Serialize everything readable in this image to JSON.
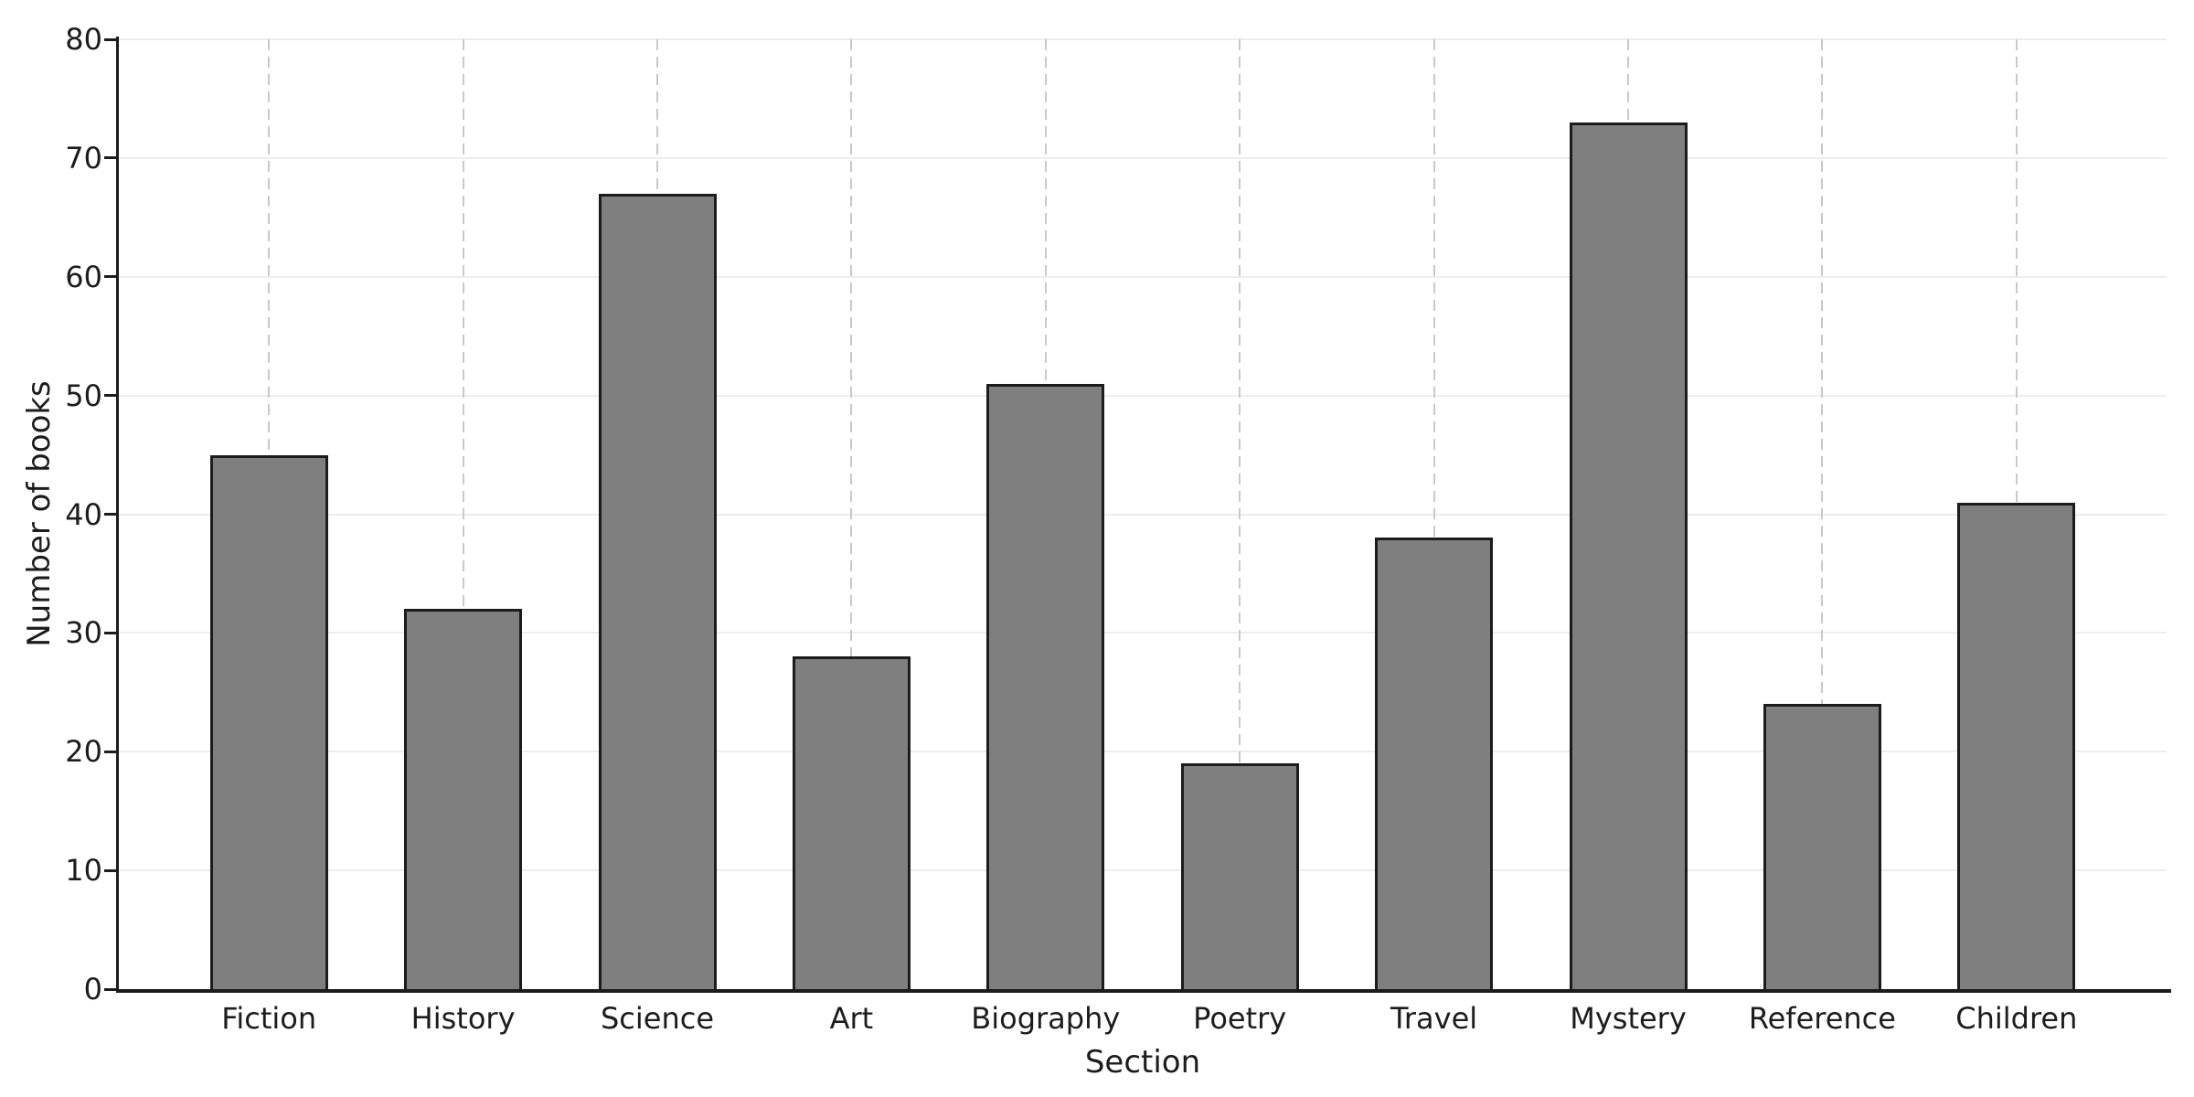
{
  "chart_data": {
    "type": "bar",
    "title": "",
    "xlabel": "Section",
    "ylabel": "Number of books",
    "categories": [
      "Fiction",
      "History",
      "Science",
      "Art",
      "Biography",
      "Poetry",
      "Travel",
      "Mystery",
      "Reference",
      "Children"
    ],
    "values": [
      45,
      32,
      67,
      28,
      51,
      19,
      38,
      73,
      24,
      41
    ],
    "ylim": [
      0,
      80
    ],
    "yticks": [
      0,
      10,
      20,
      30,
      40,
      50,
      60,
      70,
      80
    ],
    "grid": {
      "horizontal": "solid",
      "vertical": "dashed"
    },
    "legend": "none",
    "colors": {
      "bar_fill": "#7f7f7f",
      "bar_edge": "#1c1c1c",
      "hgrid": "#ededed",
      "vgrid": "#c9c9c9",
      "axis": "#1c1c1c",
      "text": "#1c1c1c",
      "background": "#ffffff"
    }
  }
}
